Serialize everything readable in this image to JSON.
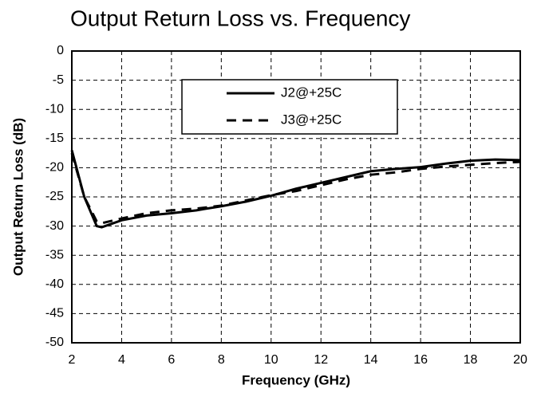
{
  "chart_data": {
    "type": "line",
    "title": "Output Return Loss vs. Frequency",
    "x_label": "Frequency (GHz)",
    "y_label": "Output Return Loss (dB)",
    "x": [
      2,
      2.5,
      3,
      3.2,
      4,
      5,
      6,
      7,
      8,
      9,
      10,
      11,
      12,
      13,
      14,
      15,
      16,
      17,
      18,
      19,
      20
    ],
    "series": [
      {
        "name": "J2@+25C",
        "color": "#000000",
        "dash": "solid",
        "values": [
          -17,
          -25,
          -30,
          -30.2,
          -29,
          -28.2,
          -27.8,
          -27.3,
          -26.6,
          -25.8,
          -24.8,
          -23.6,
          -22.6,
          -21.6,
          -20.6,
          -20.2,
          -19.9,
          -19.3,
          -18.8,
          -18.6,
          -18.7
        ]
      },
      {
        "name": "J3@+25C",
        "color": "#000000",
        "dash": "dashed",
        "values": [
          -17.5,
          -25,
          -29.2,
          -29.5,
          -28.7,
          -27.8,
          -27.3,
          -27,
          -26.5,
          -25.6,
          -24.7,
          -24,
          -23,
          -22,
          -21.2,
          -20.8,
          -20.2,
          -19.8,
          -19.5,
          -19.2,
          -19
        ]
      }
    ],
    "xlim": [
      2,
      20
    ],
    "xticks": [
      2,
      4,
      6,
      8,
      10,
      12,
      14,
      16,
      18,
      20
    ],
    "ylim": [
      -50,
      0
    ],
    "yticks": [
      0,
      -5,
      -10,
      -15,
      -20,
      -25,
      -30,
      -35,
      -40,
      -45,
      -50
    ],
    "grid": true,
    "legend": "top"
  }
}
